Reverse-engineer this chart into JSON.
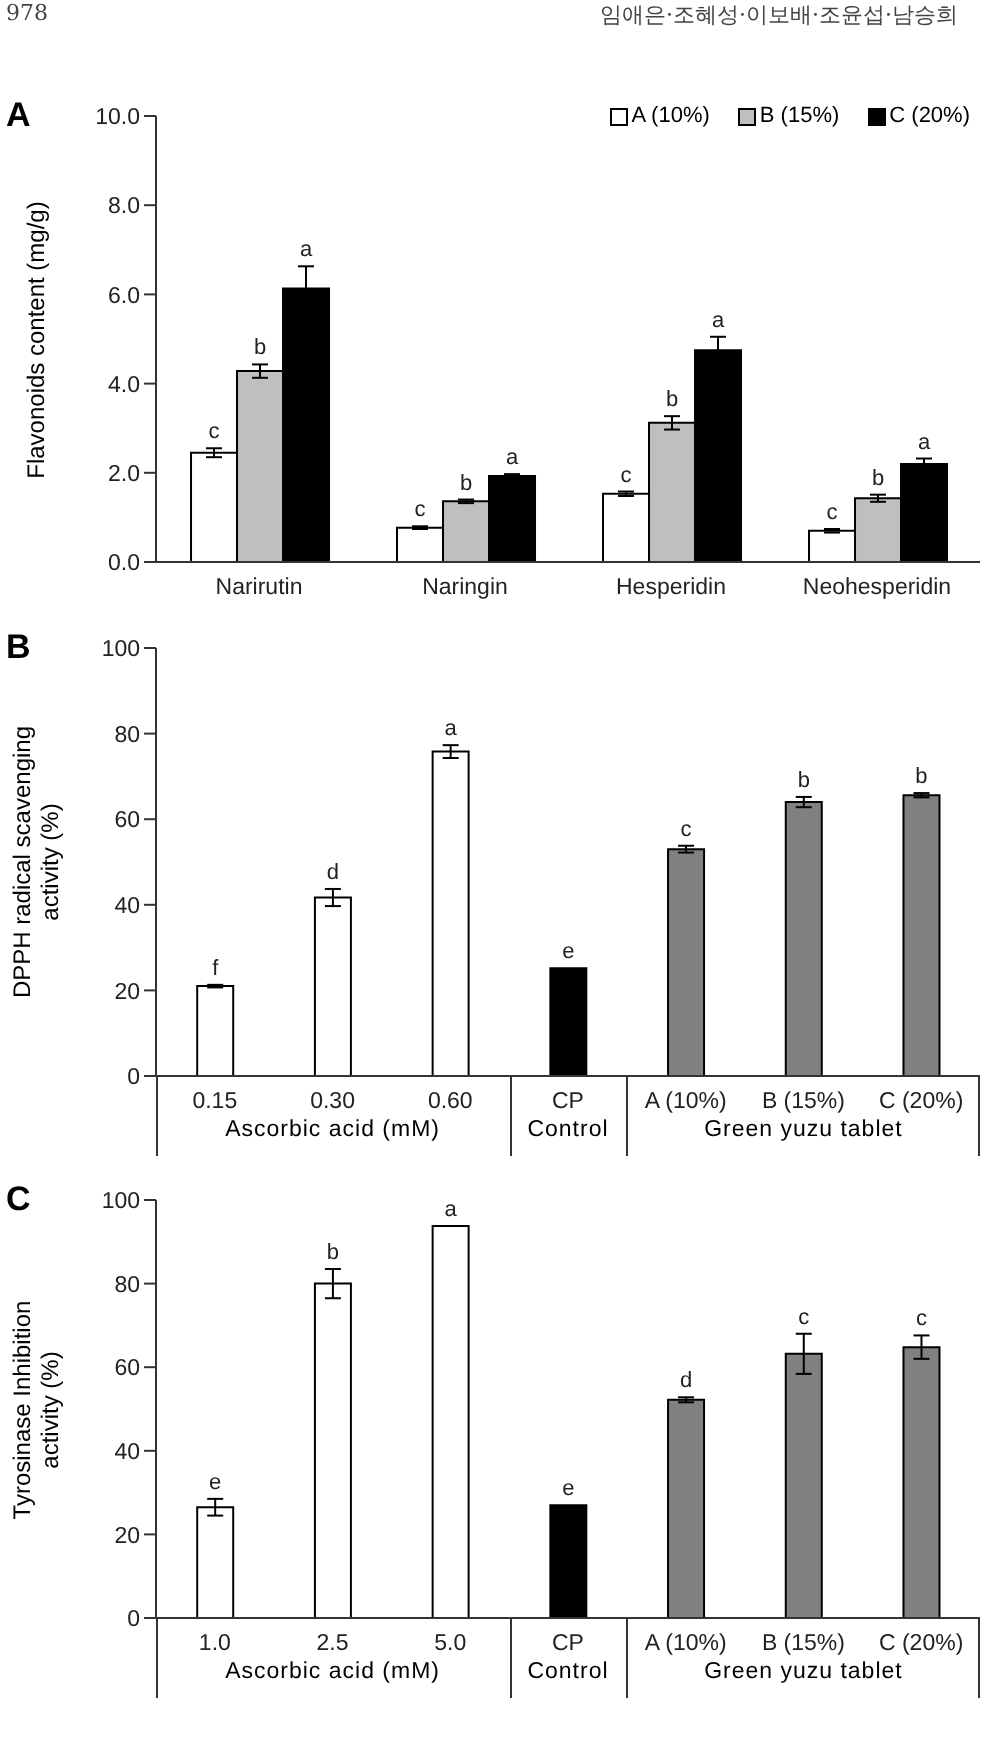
{
  "chart_data": [
    {
      "type": "bar",
      "title": "A",
      "ylabel": "Flavonoids content (mg/g)",
      "categories": [
        "Narirutin",
        "Naringin",
        "Hesperidin",
        "Neohesperidin"
      ],
      "series": [
        {
          "name": "A (10%)",
          "color": "#ffffff",
          "values": [
            2.45,
            0.77,
            1.53,
            0.7
          ],
          "errors": [
            0.1,
            0.03,
            0.05,
            0.04
          ],
          "value_labels": [
            "c",
            "c",
            "c",
            "c"
          ]
        },
        {
          "name": "B (15%)",
          "color": "#bfbfbf",
          "values": [
            4.28,
            1.36,
            3.12,
            1.43
          ],
          "errors": [
            0.15,
            0.04,
            0.15,
            0.08
          ],
          "value_labels": [
            "b",
            "b",
            "b",
            "b"
          ]
        },
        {
          "name": "C (20%)",
          "color": "#000000",
          "values": [
            6.13,
            1.93,
            4.75,
            2.2
          ],
          "errors": [
            0.5,
            0.04,
            0.3,
            0.12
          ],
          "value_labels": [
            "a",
            "a",
            "a",
            "a"
          ]
        }
      ],
      "ylim": [
        0,
        10
      ],
      "yticks": [
        {
          "value": 0,
          "label": "0.0"
        },
        {
          "value": 2,
          "label": "2.0"
        },
        {
          "value": 4,
          "label": "4.0"
        },
        {
          "value": 6,
          "label": "6.0"
        },
        {
          "value": 8,
          "label": "8.0"
        },
        {
          "value": 10,
          "label": "10.0"
        }
      ],
      "legend": "top right",
      "grid": false,
      "annotations": [
        "978",
        "임애은·조혜성·이보배·조윤섭·남승희"
      ]
    },
    {
      "type": "bar",
      "title": "B",
      "ylabel": "DPPH radical scavenging\nactivity (%)",
      "categories": [
        "0.15",
        "0.30",
        "0.60",
        "CP",
        "A (10%)",
        "B (15%)",
        "C (20%)"
      ],
      "series": [
        {
          "colors": [
            "#ffffff",
            "#ffffff",
            "#ffffff",
            "#000000",
            "#808080",
            "#808080",
            "#808080"
          ],
          "values": [
            21,
            41.7,
            75.8,
            25.2,
            53,
            64,
            65.6
          ],
          "errors": [
            0.3,
            2,
            1.5,
            null,
            0.8,
            1.2,
            0.5
          ],
          "value_labels": [
            "f",
            "d",
            "a",
            "e",
            "c",
            "b",
            "b"
          ]
        }
      ],
      "ylim": [
        0,
        100
      ],
      "yticks": [
        0,
        20,
        40,
        60,
        80,
        100
      ],
      "grid": false,
      "legend": false,
      "annotations": [
        "Ascorbic acid (mM)",
        "Control",
        "Green yuzu tablet"
      ]
    },
    {
      "type": "bar",
      "title": "C",
      "ylabel": "Tyrosinase Inhibition\nactivity (%)",
      "categories": [
        "1.0",
        "2.5",
        "5.0",
        "CP",
        "A (10%)",
        "B (15%)",
        "C (20%)"
      ],
      "series": [
        {
          "colors": [
            "#ffffff",
            "#ffffff",
            "#ffffff",
            "#000000",
            "#808080",
            "#808080",
            "#808080"
          ],
          "values": [
            26.5,
            80,
            93.8,
            27,
            52.2,
            63.2,
            64.8
          ],
          "errors": [
            2,
            3.5,
            null,
            null,
            0.6,
            4.8,
            2.8
          ],
          "value_labels": [
            "e",
            "b",
            "a",
            "e",
            "d",
            "c",
            "c"
          ]
        }
      ],
      "ylim": [
        0,
        100
      ],
      "yticks": [
        0,
        20,
        40,
        60,
        80,
        100
      ],
      "grid": false,
      "legend": false,
      "annotations": [
        "Ascorbic acid (mM)",
        "Control",
        "Green yuzu tablet"
      ]
    }
  ]
}
